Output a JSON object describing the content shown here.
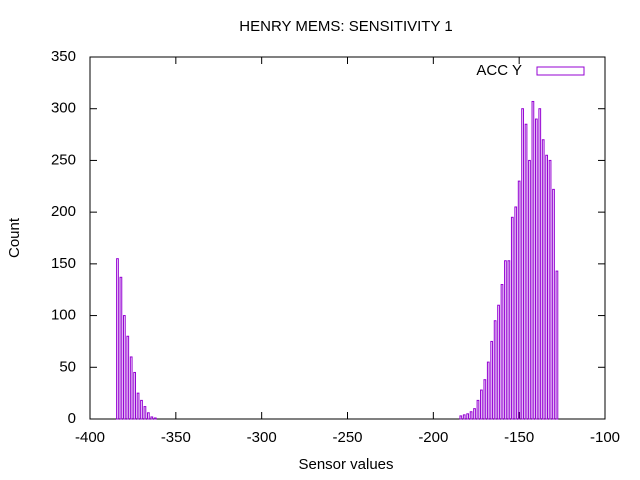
{
  "chart_data": {
    "type": "bar",
    "title": "HENRY MEMS: SENSITIVITY 1",
    "x_label": "Sensor values",
    "y_label": "Count",
    "xlim": [
      -400,
      -100
    ],
    "xticks": [
      -400,
      -350,
      -300,
      -250,
      -200,
      -150,
      -100
    ],
    "ylim": [
      0,
      350
    ],
    "yticks": [
      0,
      50,
      100,
      150,
      200,
      250,
      300,
      350
    ],
    "legend": "top-right",
    "series": [
      {
        "name": "ACC Y",
        "color": "#9400d3",
        "x": [
          -384,
          -382,
          -380,
          -378,
          -376,
          -374,
          -372,
          -370,
          -368,
          -366,
          -364,
          -362,
          -360,
          -358,
          -356,
          -354,
          -352,
          -350,
          -348,
          -346,
          -344,
          -342,
          -340,
          -338,
          -336,
          -334,
          -332,
          -330,
          -328,
          -326,
          -324,
          -322,
          -320,
          -318,
          -316,
          -314,
          -312,
          -310,
          -308,
          -306,
          -304,
          -302,
          -300,
          -298,
          -296,
          -294,
          -292,
          -290,
          -288,
          -286,
          -284,
          -282,
          -280,
          -278,
          -276,
          -274,
          -272,
          -270,
          -268,
          -266,
          -264,
          -262,
          -260,
          -258,
          -256,
          -254,
          -252,
          -250,
          -248,
          -246,
          -244,
          -242,
          -240,
          -238,
          -236,
          -234,
          -232,
          -230,
          -228,
          -226,
          -224,
          -222,
          -220,
          -218,
          -216,
          -214,
          -212,
          -210,
          -208,
          -206,
          -204,
          -202,
          -200,
          -198,
          -196,
          -194,
          -192,
          -190,
          -188,
          -186,
          -184,
          -182,
          -180,
          -178,
          -176,
          -174,
          -172,
          -170,
          -168,
          -166,
          -164,
          -162,
          -160,
          -158,
          -156,
          -154,
          -152,
          -150,
          -148,
          -146,
          -144,
          -142,
          -140,
          -138,
          -136,
          -134,
          -132,
          -130,
          -128
        ],
        "values": [
          155,
          137,
          100,
          80,
          60,
          45,
          25,
          18,
          12,
          6,
          2,
          1,
          0,
          0,
          0,
          0,
          0,
          0,
          0,
          0,
          0,
          0,
          0,
          0,
          0,
          0,
          0,
          0,
          0,
          0,
          0,
          0,
          0,
          0,
          0,
          0,
          0,
          0,
          0,
          0,
          0,
          0,
          0,
          0,
          0,
          0,
          0,
          0,
          0,
          0,
          0,
          0,
          0,
          0,
          0,
          0,
          0,
          0,
          0,
          0,
          0,
          0,
          0,
          0,
          0,
          0,
          0,
          0,
          0,
          0,
          0,
          0,
          0,
          0,
          0,
          0,
          0,
          0,
          0,
          0,
          0,
          0,
          0,
          0,
          0,
          0,
          0,
          0,
          0,
          0,
          0,
          0,
          0,
          0,
          0,
          0,
          0,
          0,
          0,
          0,
          3,
          4,
          5,
          7,
          10,
          18,
          28,
          38,
          55,
          75,
          95,
          110,
          130,
          153,
          153,
          195,
          205,
          230,
          300,
          285,
          250,
          307,
          290,
          300,
          270,
          255,
          250,
          222,
          143
        ]
      }
    ]
  }
}
